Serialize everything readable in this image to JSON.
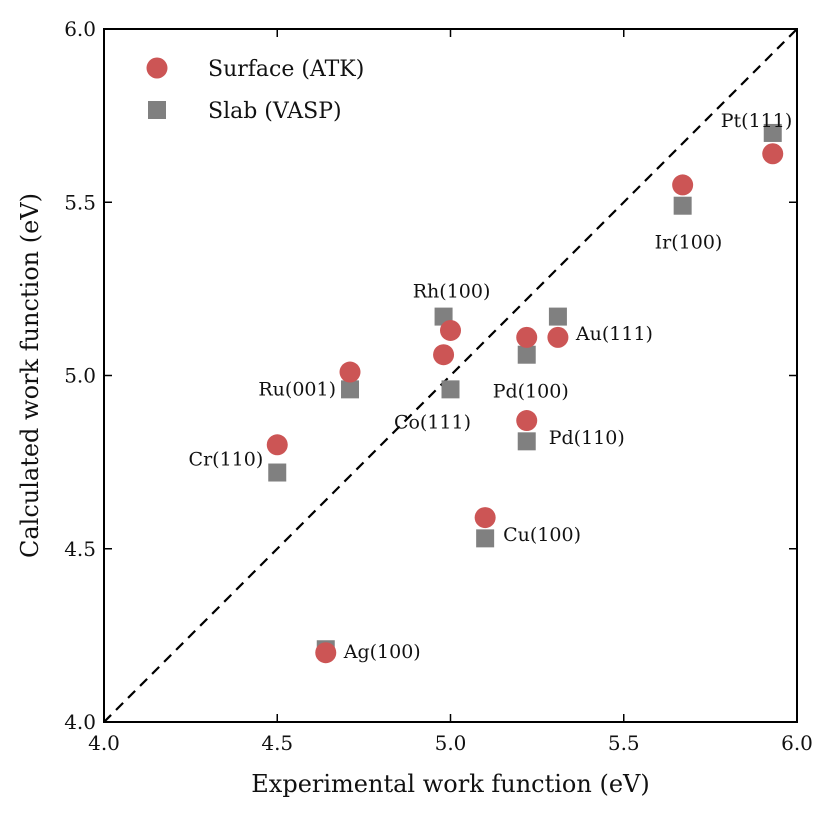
{
  "chart_data": {
    "type": "scatter",
    "title": "",
    "xlabel": "Experimental work function (eV)",
    "ylabel": "Calculated work function (eV)",
    "xlim": [
      4.0,
      6.0
    ],
    "ylim": [
      4.0,
      6.0
    ],
    "xticks": [
      "4.0",
      "4.5",
      "5.0",
      "5.5",
      "6.0"
    ],
    "yticks": [
      "4.0",
      "4.5",
      "5.0",
      "5.5",
      "6.0"
    ],
    "grid": false,
    "legend_position": "top-left",
    "reference_line": "y = x (dashed)",
    "series": [
      {
        "name": "Surface (ATK)",
        "marker": "circle",
        "color": "#cc5555",
        "points": [
          {
            "x": 4.5,
            "y": 4.8
          },
          {
            "x": 4.64,
            "y": 4.2
          },
          {
            "x": 4.71,
            "y": 5.01
          },
          {
            "x": 4.98,
            "y": 5.06
          },
          {
            "x": 5.0,
            "y": 5.13
          },
          {
            "x": 5.1,
            "y": 4.59
          },
          {
            "x": 5.22,
            "y": 5.11
          },
          {
            "x": 5.22,
            "y": 4.87
          },
          {
            "x": 5.31,
            "y": 5.11
          },
          {
            "x": 5.67,
            "y": 5.55
          },
          {
            "x": 5.93,
            "y": 5.64
          }
        ]
      },
      {
        "name": "Slab (VASP)",
        "marker": "square",
        "color": "#808080",
        "points": [
          {
            "x": 4.5,
            "y": 4.72
          },
          {
            "x": 4.64,
            "y": 4.21
          },
          {
            "x": 4.71,
            "y": 4.96
          },
          {
            "x": 4.98,
            "y": 5.17
          },
          {
            "x": 5.0,
            "y": 4.96
          },
          {
            "x": 5.1,
            "y": 4.53
          },
          {
            "x": 5.22,
            "y": 5.06
          },
          {
            "x": 5.22,
            "y": 4.81
          },
          {
            "x": 5.31,
            "y": 5.17
          },
          {
            "x": 5.67,
            "y": 5.49
          },
          {
            "x": 5.93,
            "y": 5.7
          }
        ]
      }
    ],
    "annotations": [
      {
        "text": "Cr(110)",
        "x": 4.5,
        "y": 4.76
      },
      {
        "text": "Ag(100)",
        "x": 4.64,
        "y": 4.21
      },
      {
        "text": "Ru(001)",
        "x": 4.71,
        "y": 4.98
      },
      {
        "text": "Rh(100)",
        "x": 4.98,
        "y": 5.17
      },
      {
        "text": "Co(111)",
        "x": 5.0,
        "y": 4.96
      },
      {
        "text": "Cu(100)",
        "x": 5.1,
        "y": 4.56
      },
      {
        "text": "Pd(100)",
        "x": 5.22,
        "y": 5.06
      },
      {
        "text": "Pd(110)",
        "x": 5.22,
        "y": 4.84
      },
      {
        "text": "Au(111)",
        "x": 5.31,
        "y": 5.14
      },
      {
        "text": "Ir(100)",
        "x": 5.67,
        "y": 5.49
      },
      {
        "text": "Pt(111)",
        "x": 5.93,
        "y": 5.7
      }
    ]
  }
}
